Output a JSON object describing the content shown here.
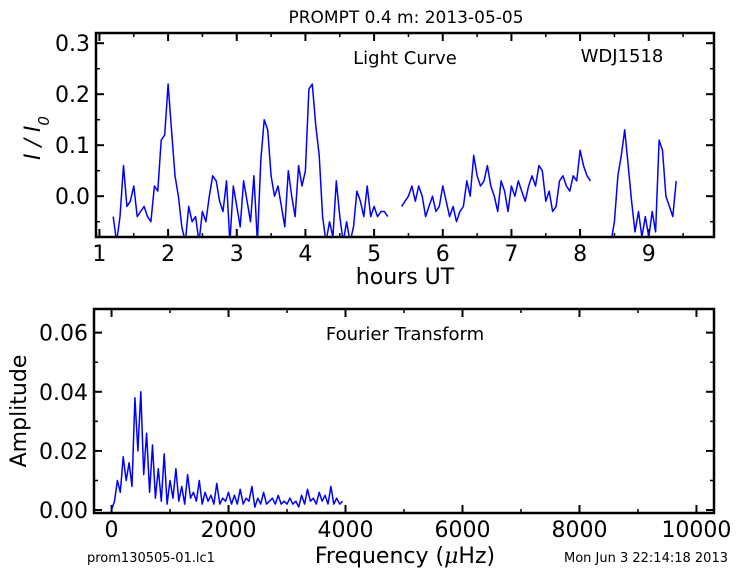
{
  "figure_title": "PROMPT 0.4 m:  2013-05-05",
  "footer": {
    "filename": "prom130505-01.lc1",
    "timestamp": "Mon Jun  3 22:14:18 2013"
  },
  "chart_data": [
    {
      "type": "line",
      "title": "Light Curve",
      "annotation": "WDJ1518",
      "xlabel": "hours UT",
      "ylabel_base": "I / I",
      "ylabel_sub": "0",
      "xlim": [
        0.95,
        9.95
      ],
      "ylim": [
        -0.08,
        0.32
      ],
      "x_ticks": [
        1,
        2,
        3,
        4,
        5,
        6,
        7,
        8,
        9
      ],
      "y_ticks": [
        0.0,
        0.1,
        0.2,
        0.3
      ],
      "y_tick_labels": [
        "0.0",
        "0.1",
        "0.2",
        "0.3"
      ],
      "line_color": "#0000ff",
      "series": [
        {
          "x": [
            1.2,
            1.25,
            1.3,
            1.35,
            1.4,
            1.45,
            1.5,
            1.55,
            1.6,
            1.65,
            1.7,
            1.75,
            1.8,
            1.85,
            1.9,
            1.95,
            2.0,
            2.05,
            2.1,
            2.15,
            2.2,
            2.25,
            2.3,
            2.35,
            2.4,
            2.45,
            2.5,
            2.55,
            2.6,
            2.65,
            2.7,
            2.75,
            2.8,
            2.85,
            2.9,
            2.95,
            3.0,
            3.05,
            3.1,
            3.15,
            3.2,
            3.25,
            3.3,
            3.35,
            3.4,
            3.45,
            3.5,
            3.55,
            3.6,
            3.65,
            3.7,
            3.75,
            3.8,
            3.85,
            3.9,
            3.95,
            4.0,
            4.05,
            4.1,
            4.15,
            4.2,
            4.25,
            4.3,
            4.35,
            4.4,
            4.45,
            4.5,
            4.55,
            4.6,
            4.65,
            4.7,
            4.75,
            4.8,
            4.85,
            4.9,
            4.95,
            5.0,
            5.05,
            5.1,
            5.15,
            5.2
          ],
          "y": [
            -0.04,
            -0.09,
            -0.04,
            0.06,
            -0.02,
            -0.01,
            0.02,
            -0.04,
            -0.03,
            -0.02,
            -0.04,
            -0.05,
            0.02,
            0.01,
            0.11,
            0.12,
            0.22,
            0.13,
            0.04,
            0.0,
            -0.06,
            -0.09,
            -0.02,
            -0.05,
            -0.04,
            -0.09,
            -0.03,
            -0.05,
            0.0,
            0.04,
            0.03,
            -0.01,
            -0.03,
            0.03,
            -0.09,
            0.02,
            -0.02,
            -0.06,
            0.03,
            -0.01,
            -0.05,
            0.04,
            -0.09,
            0.07,
            0.15,
            0.13,
            0.04,
            0.0,
            0.02,
            -0.02,
            -0.06,
            0.05,
            0.0,
            -0.04,
            0.06,
            0.02,
            0.05,
            0.21,
            0.22,
            0.14,
            0.08,
            -0.04,
            -0.09,
            -0.05,
            -0.08,
            0.03,
            -0.04,
            -0.09,
            -0.05,
            -0.09,
            -0.06,
            0.01,
            -0.01,
            -0.04,
            0.02,
            -0.04,
            -0.02,
            -0.04,
            -0.03,
            -0.03,
            -0.04
          ]
        },
        {
          "x": [
            5.4,
            5.45,
            5.5,
            5.55,
            5.6,
            5.65,
            5.7,
            5.75,
            5.8,
            5.85,
            5.9,
            5.95,
            6.0,
            6.05,
            6.1,
            6.15,
            6.2,
            6.25,
            6.3,
            6.35,
            6.4,
            6.45,
            6.5,
            6.55,
            6.6,
            6.65,
            6.7,
            6.75,
            6.8,
            6.85,
            6.9,
            6.95,
            7.0,
            7.05,
            7.1,
            7.15,
            7.2,
            7.25,
            7.3,
            7.35,
            7.4,
            7.45,
            7.5,
            7.55,
            7.6,
            7.65,
            7.7,
            7.75,
            7.8,
            7.85,
            7.9,
            7.95,
            8.0,
            8.05,
            8.1,
            8.15
          ],
          "y": [
            -0.02,
            -0.01,
            0.0,
            0.02,
            -0.01,
            0.02,
            0.0,
            -0.04,
            -0.02,
            0.0,
            -0.03,
            -0.02,
            0.02,
            -0.01,
            -0.04,
            -0.02,
            -0.05,
            -0.03,
            -0.02,
            0.03,
            0.0,
            0.08,
            0.04,
            0.02,
            0.03,
            0.06,
            0.02,
            0.0,
            -0.03,
            0.03,
            0.01,
            -0.03,
            0.02,
            0.0,
            0.03,
            0.01,
            -0.01,
            0.02,
            0.04,
            0.02,
            0.06,
            0.05,
            -0.01,
            0.01,
            -0.03,
            -0.02,
            0.03,
            0.04,
            0.02,
            0.01,
            0.04,
            0.03,
            0.09,
            0.06,
            0.04,
            0.03
          ]
        },
        {
          "x": [
            8.45,
            8.5,
            8.55,
            8.6,
            8.65,
            8.7,
            8.75,
            8.8,
            8.85,
            8.9,
            8.95,
            9.0,
            9.05,
            9.1,
            9.15,
            9.2,
            9.25,
            9.3,
            9.35,
            9.4
          ],
          "y": [
            -0.09,
            -0.05,
            0.04,
            0.08,
            0.13,
            0.06,
            -0.01,
            -0.07,
            -0.03,
            -0.08,
            -0.04,
            -0.08,
            -0.03,
            -0.07,
            0.11,
            0.09,
            0.0,
            -0.02,
            -0.04,
            0.03
          ]
        }
      ]
    },
    {
      "type": "line",
      "title": "Fourier Transform",
      "xlabel_base": "Frequency (",
      "xlabel_mu": "μ",
      "xlabel_end": "Hz)",
      "ylabel": "Amplitude",
      "xlim": [
        -300,
        10300
      ],
      "ylim": [
        -0.001,
        0.068
      ],
      "x_ticks": [
        0,
        2000,
        4000,
        6000,
        8000,
        10000
      ],
      "y_ticks": [
        0.0,
        0.02,
        0.04,
        0.06
      ],
      "y_tick_labels": [
        "0.00",
        "0.02",
        "0.04",
        "0.06"
      ],
      "line_color": "#0000ff",
      "series": [
        {
          "x": [
            0,
            50,
            100,
            150,
            200,
            250,
            300,
            350,
            400,
            450,
            500,
            550,
            600,
            650,
            700,
            750,
            800,
            850,
            900,
            950,
            1000,
            1050,
            1100,
            1150,
            1200,
            1250,
            1300,
            1350,
            1400,
            1450,
            1500,
            1550,
            1600,
            1650,
            1700,
            1750,
            1800,
            1850,
            1900,
            1950,
            2000,
            2050,
            2100,
            2150,
            2200,
            2250,
            2300,
            2350,
            2400,
            2450,
            2500,
            2550,
            2600,
            2650,
            2700,
            2750,
            2800,
            2850,
            2900,
            2950,
            3000,
            3050,
            3100,
            3150,
            3200,
            3250,
            3300,
            3350,
            3400,
            3450,
            3500,
            3550,
            3600,
            3650,
            3700,
            3750,
            3800,
            3850,
            3900,
            3950
          ],
          "y": [
            0.0,
            0.003,
            0.01,
            0.006,
            0.018,
            0.01,
            0.016,
            0.008,
            0.038,
            0.02,
            0.04,
            0.012,
            0.026,
            0.006,
            0.022,
            0.004,
            0.014,
            0.003,
            0.019,
            0.002,
            0.01,
            0.004,
            0.014,
            0.003,
            0.008,
            0.002,
            0.012,
            0.004,
            0.006,
            0.003,
            0.01,
            0.002,
            0.006,
            0.003,
            0.005,
            0.002,
            0.009,
            0.002,
            0.004,
            0.003,
            0.006,
            0.002,
            0.005,
            0.002,
            0.007,
            0.002,
            0.004,
            0.003,
            0.008,
            0.001,
            0.004,
            0.002,
            0.006,
            0.002,
            0.003,
            0.004,
            0.002,
            0.005,
            0.002,
            0.003,
            0.002,
            0.004,
            0.002,
            0.003,
            0.001,
            0.005,
            0.002,
            0.007,
            0.003,
            0.004,
            0.002,
            0.006,
            0.003,
            0.005,
            0.002,
            0.008,
            0.002,
            0.004,
            0.002,
            0.003
          ]
        }
      ]
    }
  ]
}
